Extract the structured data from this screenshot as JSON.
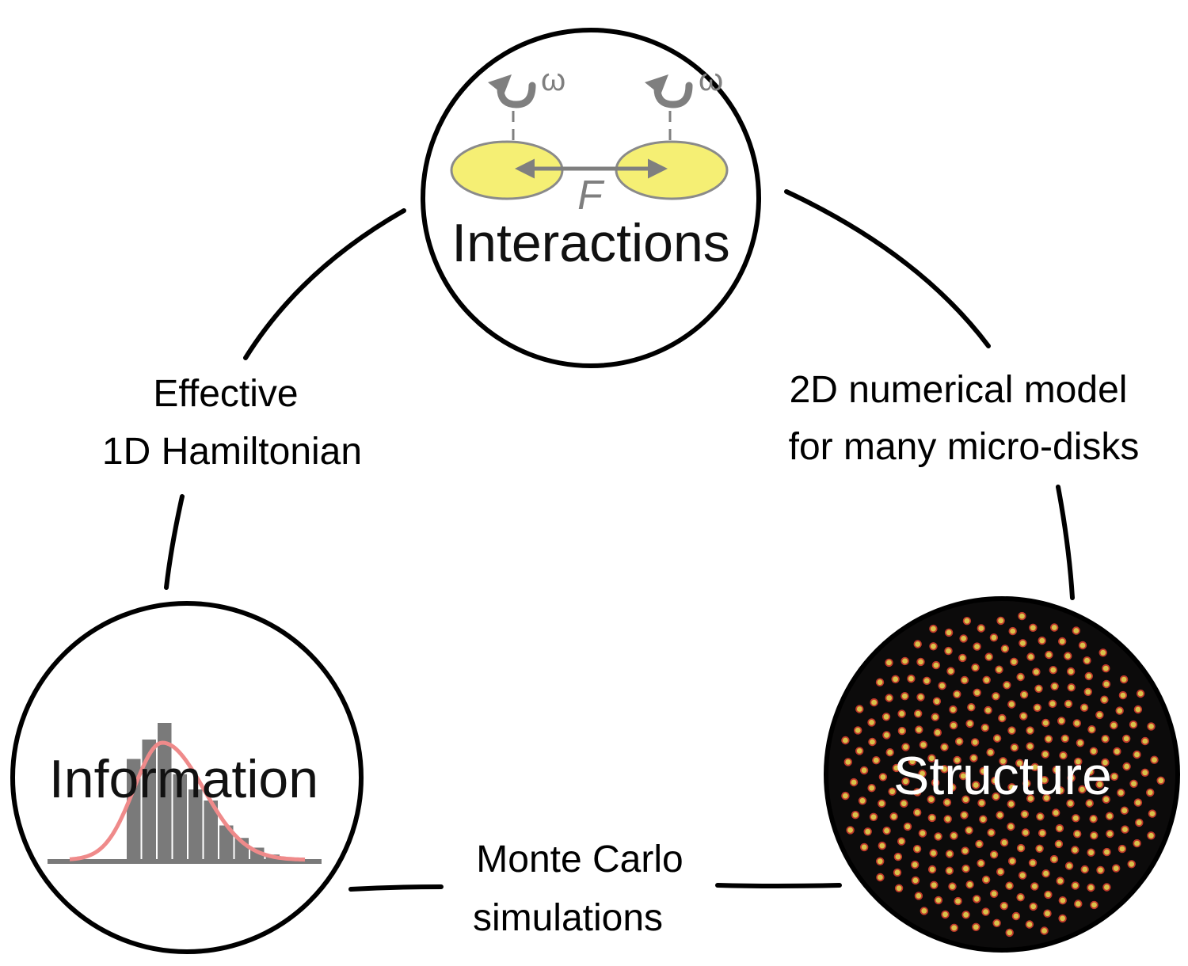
{
  "nodes": {
    "interactions": {
      "title": "Interactions",
      "force_symbol": "F",
      "rotation_symbol": "ω"
    },
    "information": {
      "title": "Information"
    },
    "structure": {
      "title": "Structure"
    }
  },
  "edges": {
    "left": {
      "line1": "Effective",
      "line2": "1D Hamiltonian"
    },
    "right": {
      "line1": "2D numerical model",
      "line2": "for many micro-disks"
    },
    "bottom": {
      "line1": "Monte Carlo",
      "line2": "simulations"
    }
  },
  "histogram": {
    "bars": [
      0.74,
      0.88,
      1.0,
      0.63,
      0.52,
      0.44,
      0.26,
      0.17,
      0.1,
      0.05,
      0.02
    ],
    "bar_color": "#7a7a7a",
    "curve_color": "#ef8a8a"
  },
  "colors": {
    "disk_fill": "#f5ef74",
    "arrow_gray": "#7f7f7f",
    "structure_bg": "#0c0b0b",
    "particle_fill": "#d9c24a",
    "particle_ring": "#c0392b"
  }
}
